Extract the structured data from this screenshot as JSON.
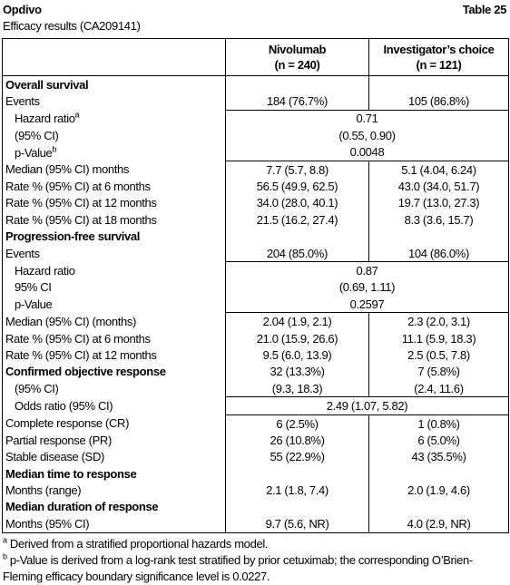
{
  "header": {
    "title": "Opdivo",
    "table_number": "Table 25",
    "subtitle": "Efficacy results (CA209141)"
  },
  "table": {
    "columns": [
      {
        "name": "Nivolumab",
        "n": "(n = 240)"
      },
      {
        "name": "Investigator’s choice",
        "n": "(n = 121)"
      }
    ],
    "rows": [
      {
        "label": "Overall survival",
        "bold": true
      },
      {
        "label": "Events",
        "values": [
          "184 (76.7%)",
          "105 (86.8%)"
        ]
      },
      {
        "label": "Hazard ratio",
        "note": "a",
        "indent": true,
        "value": "0.71"
      },
      {
        "label": "(95% CI)",
        "indent": true,
        "value": "(0.55, 0.90)"
      },
      {
        "label": "p-Value",
        "note": "b",
        "indent": true,
        "value": "0.0048"
      },
      {
        "label": "Median (95% CI) months",
        "values": [
          "7.7 (5.7, 8.8)",
          "5.1 (4.04, 6.24)"
        ]
      },
      {
        "label": "Rate % (95% CI) at 6 months",
        "values": [
          "56.5 (49.9, 62.5)",
          "43.0 (34.0, 51.7)"
        ]
      },
      {
        "label": "Rate % (95% CI) at 12 months",
        "values": [
          "34.0 (28.0, 40.1)",
          "19.7 (13.0, 27.3)"
        ]
      },
      {
        "label": "Rate % (95% CI) at 18 months",
        "values": [
          "21.5 (16.2, 27.4)",
          "8.3 (3.6, 15.7)"
        ]
      },
      {
        "label": "Progression-free survival",
        "bold": true
      },
      {
        "label": "Events",
        "values": [
          "204 (85.0%)",
          "104 (86.0%)"
        ]
      },
      {
        "label": "Hazard ratio",
        "indent": true,
        "value": "0.87"
      },
      {
        "label": "95% CI",
        "indent": true,
        "value": "(0.69, 1.11)"
      },
      {
        "label": "p-Value",
        "indent": true,
        "value": "0.2597"
      },
      {
        "label": "Median (95% CI) (months)",
        "values": [
          "2.04 (1.9, 2.1)",
          "2.3 (2.0, 3.1)"
        ]
      },
      {
        "label": "Rate % (95% CI) at 6 months",
        "values": [
          "21.0 (15.9, 26.6)",
          "11.1 (5.9, 18.3)"
        ]
      },
      {
        "label": "Rate % (95% CI) at 12 months",
        "values": [
          "9.5 (6.0, 13.9)",
          "2.5 (0.5, 7.8)"
        ]
      },
      {
        "label": "Confirmed objective response",
        "bold": true,
        "values": [
          "32 (13.3%)",
          "7 (5.8%)"
        ]
      },
      {
        "label": "(95% CI)",
        "indent": true,
        "values": [
          "(9.3, 18.3)",
          "(2.4, 11.6)"
        ]
      },
      {
        "label": "Odds ratio (95% CI)",
        "indent": true,
        "value": "2.49 (1.07, 5.82)"
      },
      {
        "label": "Complete response (CR)",
        "values": [
          "6 (2.5%)",
          "1 (0.8%)"
        ]
      },
      {
        "label": "Partial response (PR)",
        "values": [
          "26 (10.8%)",
          "6 (5.0%)"
        ]
      },
      {
        "label": "Stable disease (SD)",
        "values": [
          "55 (22.9%)",
          "43 (35.5%)"
        ]
      },
      {
        "label": "Median time to response",
        "bold": true
      },
      {
        "label": "Months (range)",
        "values": [
          "2.1 (1.8, 7.4)",
          "2.0 (1.9, 4.6)"
        ]
      },
      {
        "label": "Median duration of response",
        "bold": true
      },
      {
        "label": "Months (95% CI)",
        "values": [
          "9.7 (5.6, NR)",
          "4.0 (2.9, NR)"
        ]
      }
    ]
  },
  "footnotes": [
    {
      "marker": "a",
      "text": "Derived from a stratified proportional hazards model."
    },
    {
      "marker": "b",
      "text": "p-Value is derived from a log-rank test stratified by prior cetuximab; the corresponding O’Brien-Fleming efficacy boundary significance level is 0.0227."
    }
  ]
}
